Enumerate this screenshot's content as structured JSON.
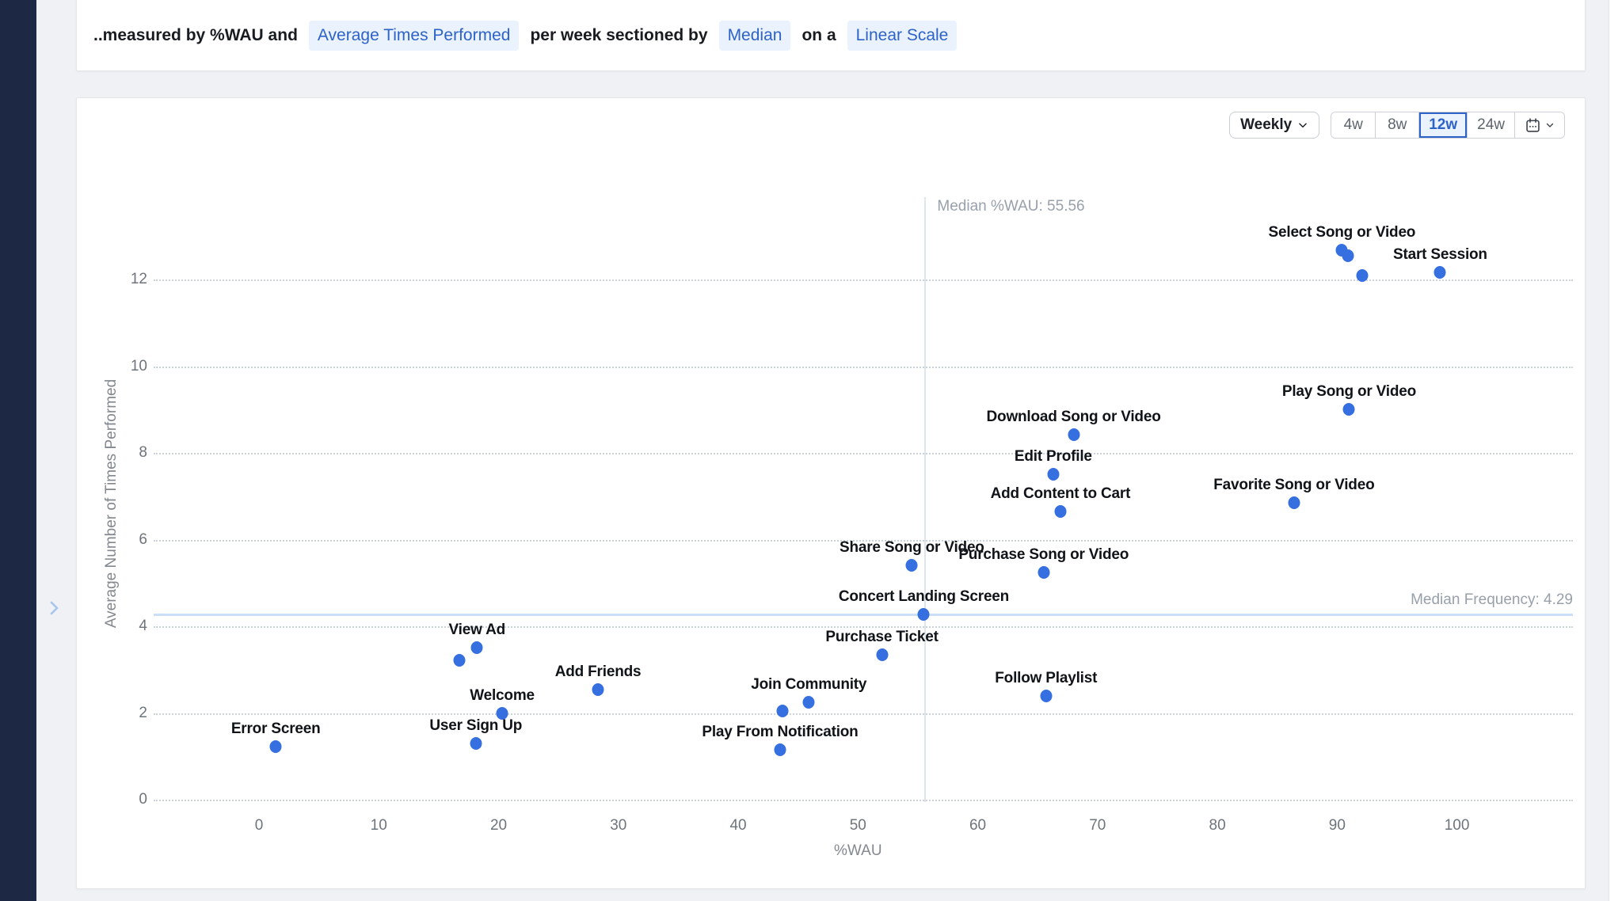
{
  "sidebar": {
    "chevron_icon": "chevron-right"
  },
  "header": {
    "prefix": "..measured by %WAU and",
    "measure_chip": "Average Times Performed",
    "middle": "per week sectioned by",
    "section_chip": "Median",
    "connector": "on a",
    "scale_chip": "Linear Scale"
  },
  "controls": {
    "granularity": "Weekly",
    "granularity_icon": "chevron-down",
    "ranges": [
      "4w",
      "8w",
      "12w",
      "24w"
    ],
    "selected_range": "12w",
    "calendar_icon": "calendar",
    "calendar_chevron_icon": "chevron-down"
  },
  "chart_data": {
    "type": "scatter",
    "xlabel": "%WAU",
    "ylabel": "Average Number of Times Performed",
    "x_ticks": [
      0,
      10,
      20,
      30,
      40,
      50,
      60,
      70,
      80,
      90,
      100
    ],
    "y_ticks": [
      0,
      2,
      4,
      6,
      8,
      10,
      12
    ],
    "xlim": [
      0,
      100
    ],
    "ylim": [
      0,
      13.4
    ],
    "grid": "dotted-horizontal",
    "median_x": {
      "value": 55.56,
      "label": "Median %WAU: 55.56"
    },
    "median_y": {
      "value": 4.29,
      "label": "Median Frequency: 4.29"
    },
    "point_color": "#356fe0",
    "points": [
      {
        "label": "Select Song or Video",
        "x": 90.4,
        "y": 12.67
      },
      {
        "label": "",
        "x": 90.9,
        "y": 12.55
      },
      {
        "label": "",
        "x": 92.1,
        "y": 12.1
      },
      {
        "label": "Start Session",
        "x": 98.6,
        "y": 12.16
      },
      {
        "label": "Play Song or Video",
        "x": 91.0,
        "y": 9.0
      },
      {
        "label": "Download Song or Video",
        "x": 68.0,
        "y": 8.42
      },
      {
        "label": "Edit Profile",
        "x": 66.3,
        "y": 7.5
      },
      {
        "label": "Add Content to Cart",
        "x": 66.9,
        "y": 6.65
      },
      {
        "label": "Favorite Song or Video",
        "x": 86.4,
        "y": 6.85
      },
      {
        "label": "Share Song or Video",
        "x": 54.5,
        "y": 5.4
      },
      {
        "label": "Purchase Song or Video",
        "x": 65.5,
        "y": 5.25
      },
      {
        "label": "Concert Landing Screen",
        "x": 55.5,
        "y": 4.28
      },
      {
        "label": "Purchase Ticket",
        "x": 52.0,
        "y": 3.35
      },
      {
        "label": "View Ad",
        "x": 18.2,
        "y": 3.5
      },
      {
        "label": "",
        "x": 16.7,
        "y": 3.22
      },
      {
        "label": "Add Friends",
        "x": 28.3,
        "y": 2.53
      },
      {
        "label": "Join Community",
        "x": 45.9,
        "y": 2.24
      },
      {
        "label": "",
        "x": 43.7,
        "y": 2.05
      },
      {
        "label": "Follow Playlist",
        "x": 65.7,
        "y": 2.4
      },
      {
        "label": "Welcome",
        "x": 20.3,
        "y": 2.0
      },
      {
        "label": "User Sign Up",
        "x": 18.1,
        "y": 1.3
      },
      {
        "label": "Error Screen",
        "x": 1.4,
        "y": 1.22
      },
      {
        "label": "Play From Notification",
        "x": 43.5,
        "y": 1.15
      }
    ]
  },
  "colors": {
    "accent_blue": "#2d62c8",
    "dot_blue": "#356fe0",
    "chip_bg": "#eaf2fd",
    "rail_navy": "#1d2844",
    "median_line_blue": "#cbdff7"
  }
}
